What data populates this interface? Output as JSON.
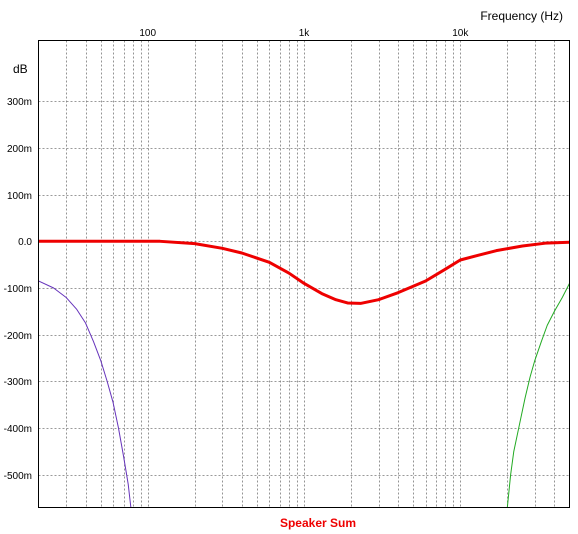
{
  "chart_data": {
    "type": "line",
    "title": "Speaker Sum",
    "title_color": "#ee0000",
    "xlabel": "Frequency  (Hz)",
    "ylabel": "dB",
    "x_scale": "log",
    "xlim": [
      20,
      50000
    ],
    "ylim": [
      -0.57,
      0.43
    ],
    "x_ticks": [
      {
        "value": 100,
        "label": "100"
      },
      {
        "value": 1000,
        "label": "1k"
      },
      {
        "value": 10000,
        "label": "10k"
      }
    ],
    "y_ticks": [
      {
        "value": 0.3,
        "label": "300m"
      },
      {
        "value": 0.2,
        "label": "200m"
      },
      {
        "value": 0.1,
        "label": "100m"
      },
      {
        "value": 0.0,
        "label": "0.0"
      },
      {
        "value": -0.1,
        "label": "-100m"
      },
      {
        "value": -0.2,
        "label": "-200m"
      },
      {
        "value": -0.3,
        "label": "-300m"
      },
      {
        "value": -0.4,
        "label": "-400m"
      },
      {
        "value": -0.5,
        "label": "-500m"
      }
    ],
    "grid": true,
    "series": [
      {
        "color": "#ee0000",
        "width": 3,
        "x": [
          20,
          40,
          80,
          120,
          200,
          300,
          400,
          600,
          800,
          1000,
          1300,
          1600,
          1900,
          2300,
          3000,
          4000,
          6000,
          8000,
          10000,
          13000,
          17000,
          25000,
          35000,
          50000
        ],
        "y": [
          0.0,
          0.0,
          0.0,
          0.0,
          -0.005,
          -0.015,
          -0.025,
          -0.045,
          -0.068,
          -0.09,
          -0.112,
          -0.125,
          -0.132,
          -0.133,
          -0.125,
          -0.11,
          -0.085,
          -0.06,
          -0.04,
          -0.03,
          -0.02,
          -0.01,
          -0.004,
          -0.002
        ]
      },
      {
        "color": "#6633bb",
        "width": 1,
        "x": [
          20,
          25,
          30,
          35,
          40,
          45,
          50,
          55,
          60,
          65,
          70,
          75,
          78
        ],
        "y": [
          -0.085,
          -0.1,
          -0.12,
          -0.145,
          -0.175,
          -0.215,
          -0.255,
          -0.3,
          -0.345,
          -0.4,
          -0.46,
          -0.52,
          -0.57
        ]
      },
      {
        "color": "#22aa22",
        "width": 1,
        "x": [
          20000,
          21000,
          22000,
          24000,
          26000,
          28000,
          30000,
          33000,
          36000,
          40000,
          45000,
          50000
        ],
        "y": [
          -0.57,
          -0.5,
          -0.45,
          -0.39,
          -0.335,
          -0.29,
          -0.255,
          -0.215,
          -0.18,
          -0.15,
          -0.12,
          -0.09
        ]
      }
    ]
  }
}
